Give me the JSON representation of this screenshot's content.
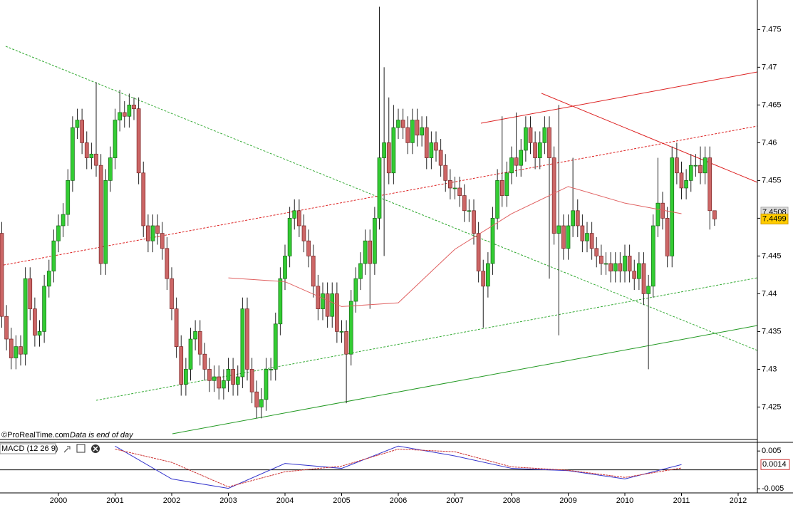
{
  "chart_data": {
    "type": "candlestick",
    "watermark": "©ProRealTime.com",
    "note": "Data is end of day",
    "up_color": "#33cc33",
    "down_color": "#cc6666",
    "categories": [
      null,
      null,
      null,
      null,
      null,
      null,
      null,
      null,
      null,
      null,
      null,
      null,
      "2000",
      null,
      null,
      null,
      null,
      null,
      null,
      null,
      null,
      null,
      null,
      null,
      "2001",
      null,
      null,
      null,
      null,
      null,
      null,
      null,
      null,
      null,
      null,
      null,
      "2002",
      null,
      null,
      null,
      null,
      null,
      null,
      null,
      null,
      null,
      null,
      null,
      "2003",
      null,
      null,
      null,
      null,
      null,
      null,
      null,
      null,
      null,
      null,
      null,
      "2004",
      null,
      null,
      null,
      null,
      null,
      null,
      null,
      null,
      null,
      null,
      null,
      "2005",
      null,
      null,
      null,
      null,
      null,
      null,
      null,
      null,
      null,
      null,
      null,
      "2006",
      null,
      null,
      null,
      null,
      null,
      null,
      null,
      null,
      null,
      null,
      null,
      "2007",
      null,
      null,
      null,
      null,
      null,
      null,
      null,
      null,
      null,
      null,
      null,
      "2008",
      null,
      null,
      null,
      null,
      null,
      null,
      null,
      null,
      null,
      null,
      null,
      "2009",
      null,
      null,
      null,
      null,
      null,
      null,
      null,
      null,
      null,
      null,
      null,
      "2010",
      null,
      null,
      null,
      null,
      null,
      null,
      null,
      null,
      null,
      null,
      null,
      "2011",
      null,
      null,
      null,
      null,
      null,
      null,
      null,
      null,
      null,
      null,
      null,
      "2012"
    ],
    "candles": [
      [
        7.448,
        7.4495,
        7.4355,
        7.437
      ],
      [
        7.437,
        7.4385,
        7.4325,
        7.434
      ],
      [
        7.434,
        7.4355,
        7.43,
        7.4315
      ],
      [
        7.4315,
        7.4345,
        7.43,
        7.433
      ],
      [
        7.433,
        7.4345,
        7.4305,
        7.432
      ],
      [
        7.432,
        7.4435,
        7.4305,
        7.442
      ],
      [
        7.442,
        7.4435,
        7.4365,
        7.438
      ],
      [
        7.438,
        7.4395,
        7.433,
        7.4345
      ],
      [
        7.4345,
        7.4365,
        7.433,
        7.435
      ],
      [
        7.435,
        7.4425,
        7.4335,
        7.441
      ],
      [
        7.441,
        7.4445,
        7.4395,
        7.443
      ],
      [
        7.443,
        7.4485,
        7.4415,
        7.447
      ],
      [
        7.447,
        7.4505,
        7.4455,
        7.449
      ],
      [
        7.449,
        7.452,
        7.4475,
        7.4505
      ],
      [
        7.4505,
        7.4565,
        7.449,
        7.455
      ],
      [
        7.455,
        7.4635,
        7.4535,
        7.462
      ],
      [
        7.462,
        7.4645,
        7.4605,
        7.463
      ],
      [
        7.463,
        7.4645,
        7.4585,
        7.46
      ],
      [
        7.46,
        7.4615,
        7.4565,
        7.458
      ],
      [
        7.458,
        7.46,
        7.4565,
        7.4585
      ],
      [
        7.4585,
        7.468,
        7.4555,
        7.457
      ],
      [
        7.457,
        7.4585,
        7.4425,
        7.444
      ],
      [
        7.444,
        7.4565,
        7.4425,
        7.455
      ],
      [
        7.455,
        7.4595,
        7.4535,
        7.458
      ],
      [
        7.458,
        7.4645,
        7.4565,
        7.463
      ],
      [
        7.463,
        7.467,
        7.4615,
        7.464
      ],
      [
        7.464,
        7.4655,
        7.462,
        7.4635
      ],
      [
        7.4635,
        7.4665,
        7.462,
        7.465
      ],
      [
        7.465,
        7.466,
        7.463,
        7.4645
      ],
      [
        7.4645,
        7.466,
        7.4545,
        7.456
      ],
      [
        7.456,
        7.4575,
        7.4475,
        7.449
      ],
      [
        7.449,
        7.4505,
        7.4455,
        7.447
      ],
      [
        7.447,
        7.4505,
        7.4455,
        7.449
      ],
      [
        7.449,
        7.4505,
        7.4465,
        7.448
      ],
      [
        7.448,
        7.4495,
        7.4445,
        7.446
      ],
      [
        7.446,
        7.4475,
        7.4405,
        7.442
      ],
      [
        7.442,
        7.4435,
        7.4365,
        7.438
      ],
      [
        7.438,
        7.4395,
        7.4315,
        7.433
      ],
      [
        7.433,
        7.4345,
        7.4265,
        7.428
      ],
      [
        7.428,
        7.4315,
        7.4265,
        7.43
      ],
      [
        7.43,
        7.4355,
        7.4285,
        7.434
      ],
      [
        7.434,
        7.4365,
        7.4325,
        7.435
      ],
      [
        7.435,
        7.4365,
        7.4305,
        7.432
      ],
      [
        7.432,
        7.4335,
        7.4285,
        7.43
      ],
      [
        7.43,
        7.4315,
        7.427,
        7.4285
      ],
      [
        7.4285,
        7.4305,
        7.427,
        7.429
      ],
      [
        7.429,
        7.4305,
        7.426,
        7.4275
      ],
      [
        7.4275,
        7.43,
        7.426,
        7.4285
      ],
      [
        7.4285,
        7.4315,
        7.427,
        7.43
      ],
      [
        7.43,
        7.4315,
        7.4265,
        7.428
      ],
      [
        7.428,
        7.4305,
        7.4265,
        7.429
      ],
      [
        7.429,
        7.4395,
        7.4275,
        7.438
      ],
      [
        7.438,
        7.4395,
        7.4285,
        7.43
      ],
      [
        7.43,
        7.4315,
        7.4255,
        7.427
      ],
      [
        7.427,
        7.4285,
        7.4235,
        7.425
      ],
      [
        7.425,
        7.4275,
        7.4235,
        7.426
      ],
      [
        7.426,
        7.4315,
        7.4245,
        7.43
      ],
      [
        7.43,
        7.4315,
        7.4285,
        7.43
      ],
      [
        7.43,
        7.4375,
        7.4285,
        7.436
      ],
      [
        7.436,
        7.4435,
        7.4345,
        7.442
      ],
      [
        7.442,
        7.4465,
        7.4405,
        7.445
      ],
      [
        7.445,
        7.4515,
        7.4435,
        7.45
      ],
      [
        7.45,
        7.4525,
        7.4485,
        7.451
      ],
      [
        7.451,
        7.4525,
        7.4475,
        7.449
      ],
      [
        7.449,
        7.4505,
        7.4455,
        7.447
      ],
      [
        7.447,
        7.4485,
        7.4435,
        7.445
      ],
      [
        7.445,
        7.4465,
        7.4395,
        7.441
      ],
      [
        7.441,
        7.4425,
        7.4365,
        7.438
      ],
      [
        7.438,
        7.4415,
        7.4365,
        7.44
      ],
      [
        7.44,
        7.4415,
        7.4355,
        7.437
      ],
      [
        7.437,
        7.4415,
        7.4355,
        7.44
      ],
      [
        7.44,
        7.4415,
        7.4335,
        7.435
      ],
      [
        7.435,
        7.4365,
        7.4335,
        7.435
      ],
      [
        7.435,
        7.4365,
        7.4255,
        7.432
      ],
      [
        7.432,
        7.4405,
        7.4305,
        7.439
      ],
      [
        7.439,
        7.4435,
        7.4375,
        7.442
      ],
      [
        7.442,
        7.4455,
        7.4405,
        7.444
      ],
      [
        7.444,
        7.4485,
        7.4425,
        7.447
      ],
      [
        7.447,
        7.4485,
        7.438,
        7.444
      ],
      [
        7.444,
        7.4515,
        7.4425,
        7.45
      ],
      [
        7.45,
        7.478,
        7.4485,
        7.458
      ],
      [
        7.458,
        7.47,
        7.445,
        7.46
      ],
      [
        7.46,
        7.466,
        7.4545,
        7.456
      ],
      [
        7.456,
        7.465,
        7.4545,
        7.462
      ],
      [
        7.462,
        7.4645,
        7.4605,
        7.463
      ],
      [
        7.463,
        7.4645,
        7.4605,
        7.462
      ],
      [
        7.462,
        7.4635,
        7.4585,
        7.46
      ],
      [
        7.46,
        7.4645,
        7.4585,
        7.463
      ],
      [
        7.463,
        7.4645,
        7.4595,
        7.461
      ],
      [
        7.461,
        7.4635,
        7.4595,
        7.462
      ],
      [
        7.462,
        7.4635,
        7.4565,
        7.458
      ],
      [
        7.458,
        7.4615,
        7.4565,
        7.46
      ],
      [
        7.46,
        7.4615,
        7.4575,
        7.459
      ],
      [
        7.459,
        7.4605,
        7.4555,
        7.457
      ],
      [
        7.457,
        7.4585,
        7.4535,
        7.455
      ],
      [
        7.455,
        7.4565,
        7.4525,
        7.454
      ],
      [
        7.454,
        7.4555,
        7.4525,
        7.454
      ],
      [
        7.454,
        7.4555,
        7.4515,
        7.453
      ],
      [
        7.453,
        7.4545,
        7.4495,
        7.451
      ],
      [
        7.451,
        7.4525,
        7.4495,
        7.451
      ],
      [
        7.451,
        7.4525,
        7.4465,
        7.448
      ],
      [
        7.448,
        7.4495,
        7.4415,
        7.443
      ],
      [
        7.443,
        7.4445,
        7.4355,
        7.441
      ],
      [
        7.441,
        7.4455,
        7.4395,
        7.444
      ],
      [
        7.444,
        7.4515,
        7.4425,
        7.45
      ],
      [
        7.45,
        7.4565,
        7.4485,
        7.455
      ],
      [
        7.455,
        7.4635,
        7.4515,
        7.453
      ],
      [
        7.453,
        7.4575,
        7.4515,
        7.456
      ],
      [
        7.456,
        7.4595,
        7.4545,
        7.458
      ],
      [
        7.458,
        7.464,
        7.4555,
        7.457
      ],
      [
        7.457,
        7.4605,
        7.4555,
        7.459
      ],
      [
        7.459,
        7.4635,
        7.4575,
        7.462
      ],
      [
        7.462,
        7.4635,
        7.4585,
        7.46
      ],
      [
        7.46,
        7.4615,
        7.4565,
        7.458
      ],
      [
        7.458,
        7.4615,
        7.4565,
        7.46
      ],
      [
        7.46,
        7.4635,
        7.4585,
        7.462
      ],
      [
        7.462,
        7.4635,
        7.442,
        7.458
      ],
      [
        7.458,
        7.4595,
        7.4465,
        7.448
      ],
      [
        7.448,
        7.465,
        7.4345,
        7.449
      ],
      [
        7.449,
        7.4505,
        7.4445,
        7.446
      ],
      [
        7.446,
        7.4505,
        7.4445,
        7.449
      ],
      [
        7.449,
        7.458,
        7.4475,
        7.451
      ],
      [
        7.451,
        7.4525,
        7.4475,
        7.449
      ],
      [
        7.449,
        7.4505,
        7.4455,
        7.447
      ],
      [
        7.447,
        7.4495,
        7.4455,
        7.448
      ],
      [
        7.448,
        7.4495,
        7.4445,
        7.446
      ],
      [
        7.446,
        7.4475,
        7.4435,
        7.445
      ],
      [
        7.445,
        7.4465,
        7.4425,
        7.444
      ],
      [
        7.444,
        7.4455,
        7.4425,
        7.444
      ],
      [
        7.444,
        7.4455,
        7.4415,
        7.443
      ],
      [
        7.443,
        7.4455,
        7.4415,
        7.444
      ],
      [
        7.444,
        7.4455,
        7.4415,
        7.443
      ],
      [
        7.443,
        7.4465,
        7.4415,
        7.445
      ],
      [
        7.445,
        7.4465,
        7.4415,
        7.443
      ],
      [
        7.443,
        7.4445,
        7.4405,
        7.442
      ],
      [
        7.442,
        7.4455,
        7.4405,
        7.444
      ],
      [
        7.444,
        7.4455,
        7.4385,
        7.44
      ],
      [
        7.44,
        7.4425,
        7.43,
        7.441
      ],
      [
        7.441,
        7.4505,
        7.4395,
        7.449
      ],
      [
        7.449,
        7.458,
        7.4475,
        7.452
      ],
      [
        7.452,
        7.4535,
        7.4485,
        7.45
      ],
      [
        7.45,
        7.4515,
        7.4435,
        7.445
      ],
      [
        7.445,
        7.4595,
        7.4435,
        7.458
      ],
      [
        7.458,
        7.46,
        7.4545,
        7.456
      ],
      [
        7.456,
        7.4575,
        7.4525,
        7.454
      ],
      [
        7.454,
        7.4565,
        7.4525,
        7.455
      ],
      [
        7.455,
        7.4585,
        7.4535,
        7.457
      ],
      [
        7.457,
        7.4585,
        7.4555,
        7.457
      ],
      [
        7.457,
        7.4595,
        7.4545,
        7.456
      ],
      [
        7.456,
        7.4595,
        7.4545,
        7.458
      ],
      [
        7.458,
        7.4595,
        7.4485,
        7.451
      ],
      [
        7.451,
        7.451,
        7.449,
        7.4499
      ],
      null,
      null,
      null,
      null,
      null
    ],
    "moving_average": {
      "color": "#e06060",
      "x": [
        "2003",
        "2004",
        "2005",
        "2006",
        "2007",
        "2008",
        "2009",
        "2010",
        "2011"
      ],
      "values": [
        7.4421,
        7.4416,
        7.4383,
        7.4388,
        7.4459,
        7.4506,
        7.4542,
        7.452,
        7.4506
      ]
    },
    "ylim": [
      7.4207,
      7.4789
    ],
    "yticks": [
      7.425,
      7.43,
      7.435,
      7.44,
      7.445,
      7.45,
      7.455,
      7.46,
      7.465,
      7.47,
      7.475
    ],
    "price_tags": [
      7.4508,
      7.4499
    ],
    "macd": {
      "title": "MACD (12 26 9)",
      "ylim": [
        -0.0061,
        0.0073
      ],
      "yticks": [
        0.005,
        -0.005
      ],
      "last_value": 0.0014,
      "series": [
        {
          "color": "#3333cc",
          "x": [
            "2001",
            "2002",
            "2003",
            "2004",
            "2005",
            "2006",
            "2007",
            "2008",
            "2009",
            "2010",
            "2011"
          ],
          "values": [
            0.0063,
            -0.0024,
            -0.0049,
            0.0017,
            0.0004,
            0.0063,
            0.0037,
            0.0004,
            -0.0002,
            -0.0024,
            0.0014
          ]
        },
        {
          "color": "#cc3333",
          "x": [
            "2001",
            "2002",
            "2003",
            "2004",
            "2005",
            "2006",
            "2007",
            "2008",
            "2009",
            "2010",
            "2011"
          ],
          "values": [
            0.0055,
            0.002,
            -0.0045,
            -0.0005,
            0.001,
            0.0055,
            0.0048,
            0.0008,
            -0.0001,
            -0.002,
            0.0005
          ]
        }
      ]
    }
  }
}
